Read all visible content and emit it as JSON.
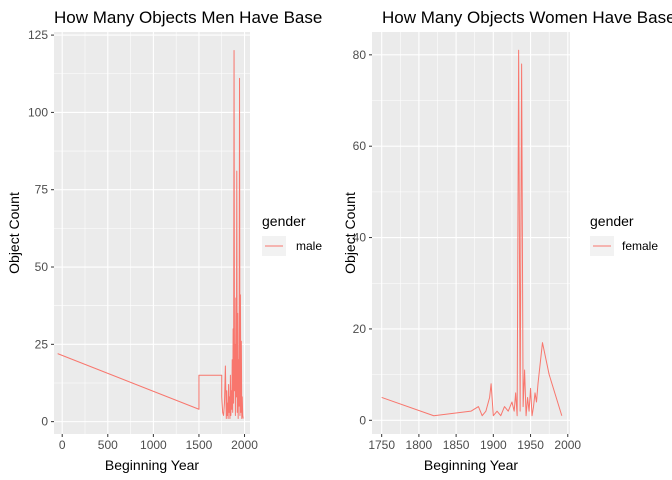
{
  "chart_data": [
    {
      "type": "line",
      "title": "How Many Objects Men Have Base",
      "xlabel": "Beginning Year",
      "ylabel": "Object Count",
      "xlim": [
        -90,
        2060
      ],
      "ylim": [
        -4,
        126
      ],
      "xticks": [
        0,
        500,
        1000,
        1500,
        2000
      ],
      "yticks": [
        0,
        25,
        50,
        75,
        100,
        125
      ],
      "grid": true,
      "legend": {
        "title": "gender",
        "position": "right",
        "entries": [
          "male"
        ]
      },
      "series": [
        {
          "name": "male",
          "color": "#F8766D",
          "x": [
            -50,
            1500,
            1500,
            1750,
            1750,
            1760,
            1770,
            1780,
            1790,
            1800,
            1805,
            1810,
            1815,
            1820,
            1825,
            1830,
            1835,
            1840,
            1845,
            1850,
            1855,
            1860,
            1865,
            1870,
            1875,
            1880,
            1885,
            1890,
            1895,
            1900,
            1905,
            1910,
            1915,
            1920,
            1925,
            1930,
            1935,
            1940,
            1945,
            1950,
            1955,
            1960,
            1965,
            1970,
            1975,
            1980,
            1985
          ],
          "y": [
            22,
            4,
            15,
            15,
            8,
            3,
            2,
            6,
            18,
            1,
            10,
            2,
            6,
            1,
            12,
            3,
            8,
            1,
            15,
            2,
            10,
            4,
            20,
            3,
            30,
            6,
            120,
            10,
            25,
            2,
            40,
            8,
            81,
            3,
            35,
            1,
            20,
            5,
            111,
            2,
            41,
            3,
            26,
            1,
            8,
            2,
            1
          ]
        }
      ]
    },
    {
      "type": "line",
      "title": "How Many Objects Women Have Base",
      "xlabel": "Beginning Year",
      "ylabel": "Object Count",
      "xlim": [
        1737,
        2003
      ],
      "ylim": [
        -3,
        85
      ],
      "xticks": [
        1750,
        1800,
        1850,
        1900,
        1950,
        2000
      ],
      "yticks": [
        0,
        20,
        40,
        60,
        80
      ],
      "grid": true,
      "legend": {
        "title": "gender",
        "position": "right",
        "entries": [
          "female"
        ]
      },
      "series": [
        {
          "name": "female",
          "color": "#F8766D",
          "x": [
            1750,
            1820,
            1870,
            1880,
            1885,
            1890,
            1895,
            1897,
            1900,
            1905,
            1910,
            1915,
            1920,
            1925,
            1928,
            1930,
            1932,
            1934,
            1936,
            1938,
            1940,
            1942,
            1944,
            1946,
            1948,
            1950,
            1952,
            1954,
            1956,
            1958,
            1960,
            1966,
            1975,
            1992
          ],
          "y": [
            5,
            1,
            2,
            3,
            1,
            2,
            5,
            8,
            1,
            2,
            1,
            3,
            2,
            4,
            2,
            6,
            1,
            81,
            2,
            78,
            3,
            11,
            1,
            5,
            2,
            7,
            1,
            3,
            6,
            4,
            8,
            17,
            10,
            1
          ]
        }
      ]
    }
  ]
}
